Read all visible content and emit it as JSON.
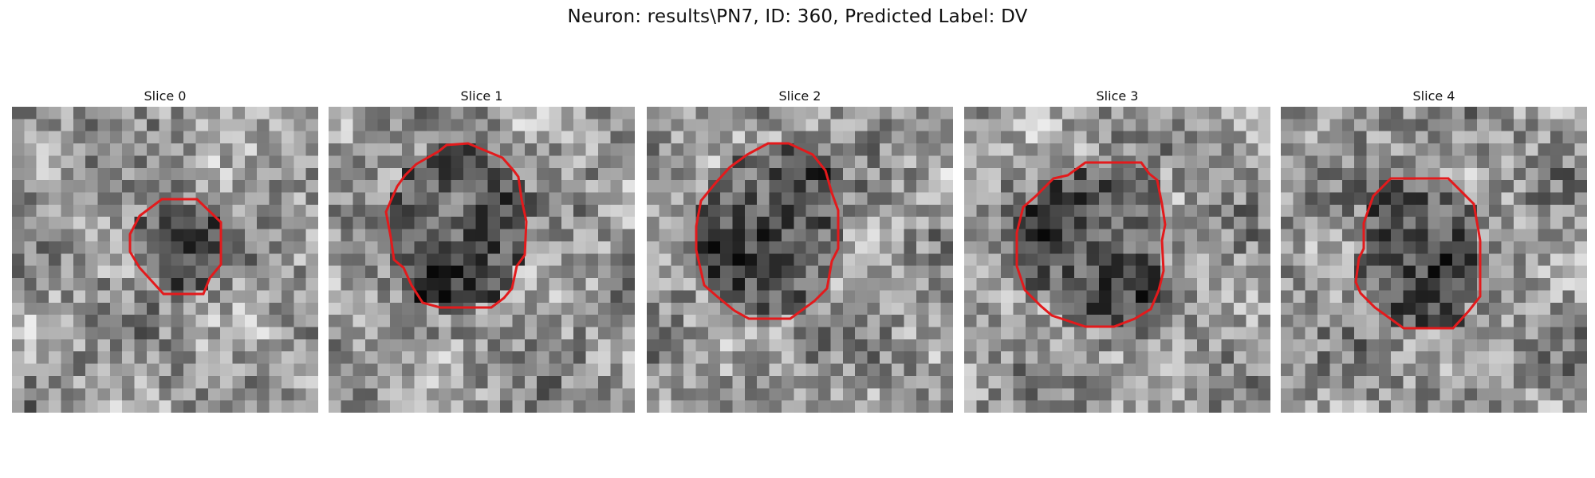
{
  "figure": {
    "title": "Neuron: results\\PN7, ID: 360, Predicted Label: DV"
  },
  "colors": {
    "contour": "#e31a1c",
    "background": "#ffffff"
  },
  "panels": [
    {
      "title": "Slice 0"
    },
    {
      "title": "Slice 1"
    },
    {
      "title": "Slice 2"
    },
    {
      "title": "Slice 3"
    },
    {
      "title": "Slice 4"
    }
  ]
}
